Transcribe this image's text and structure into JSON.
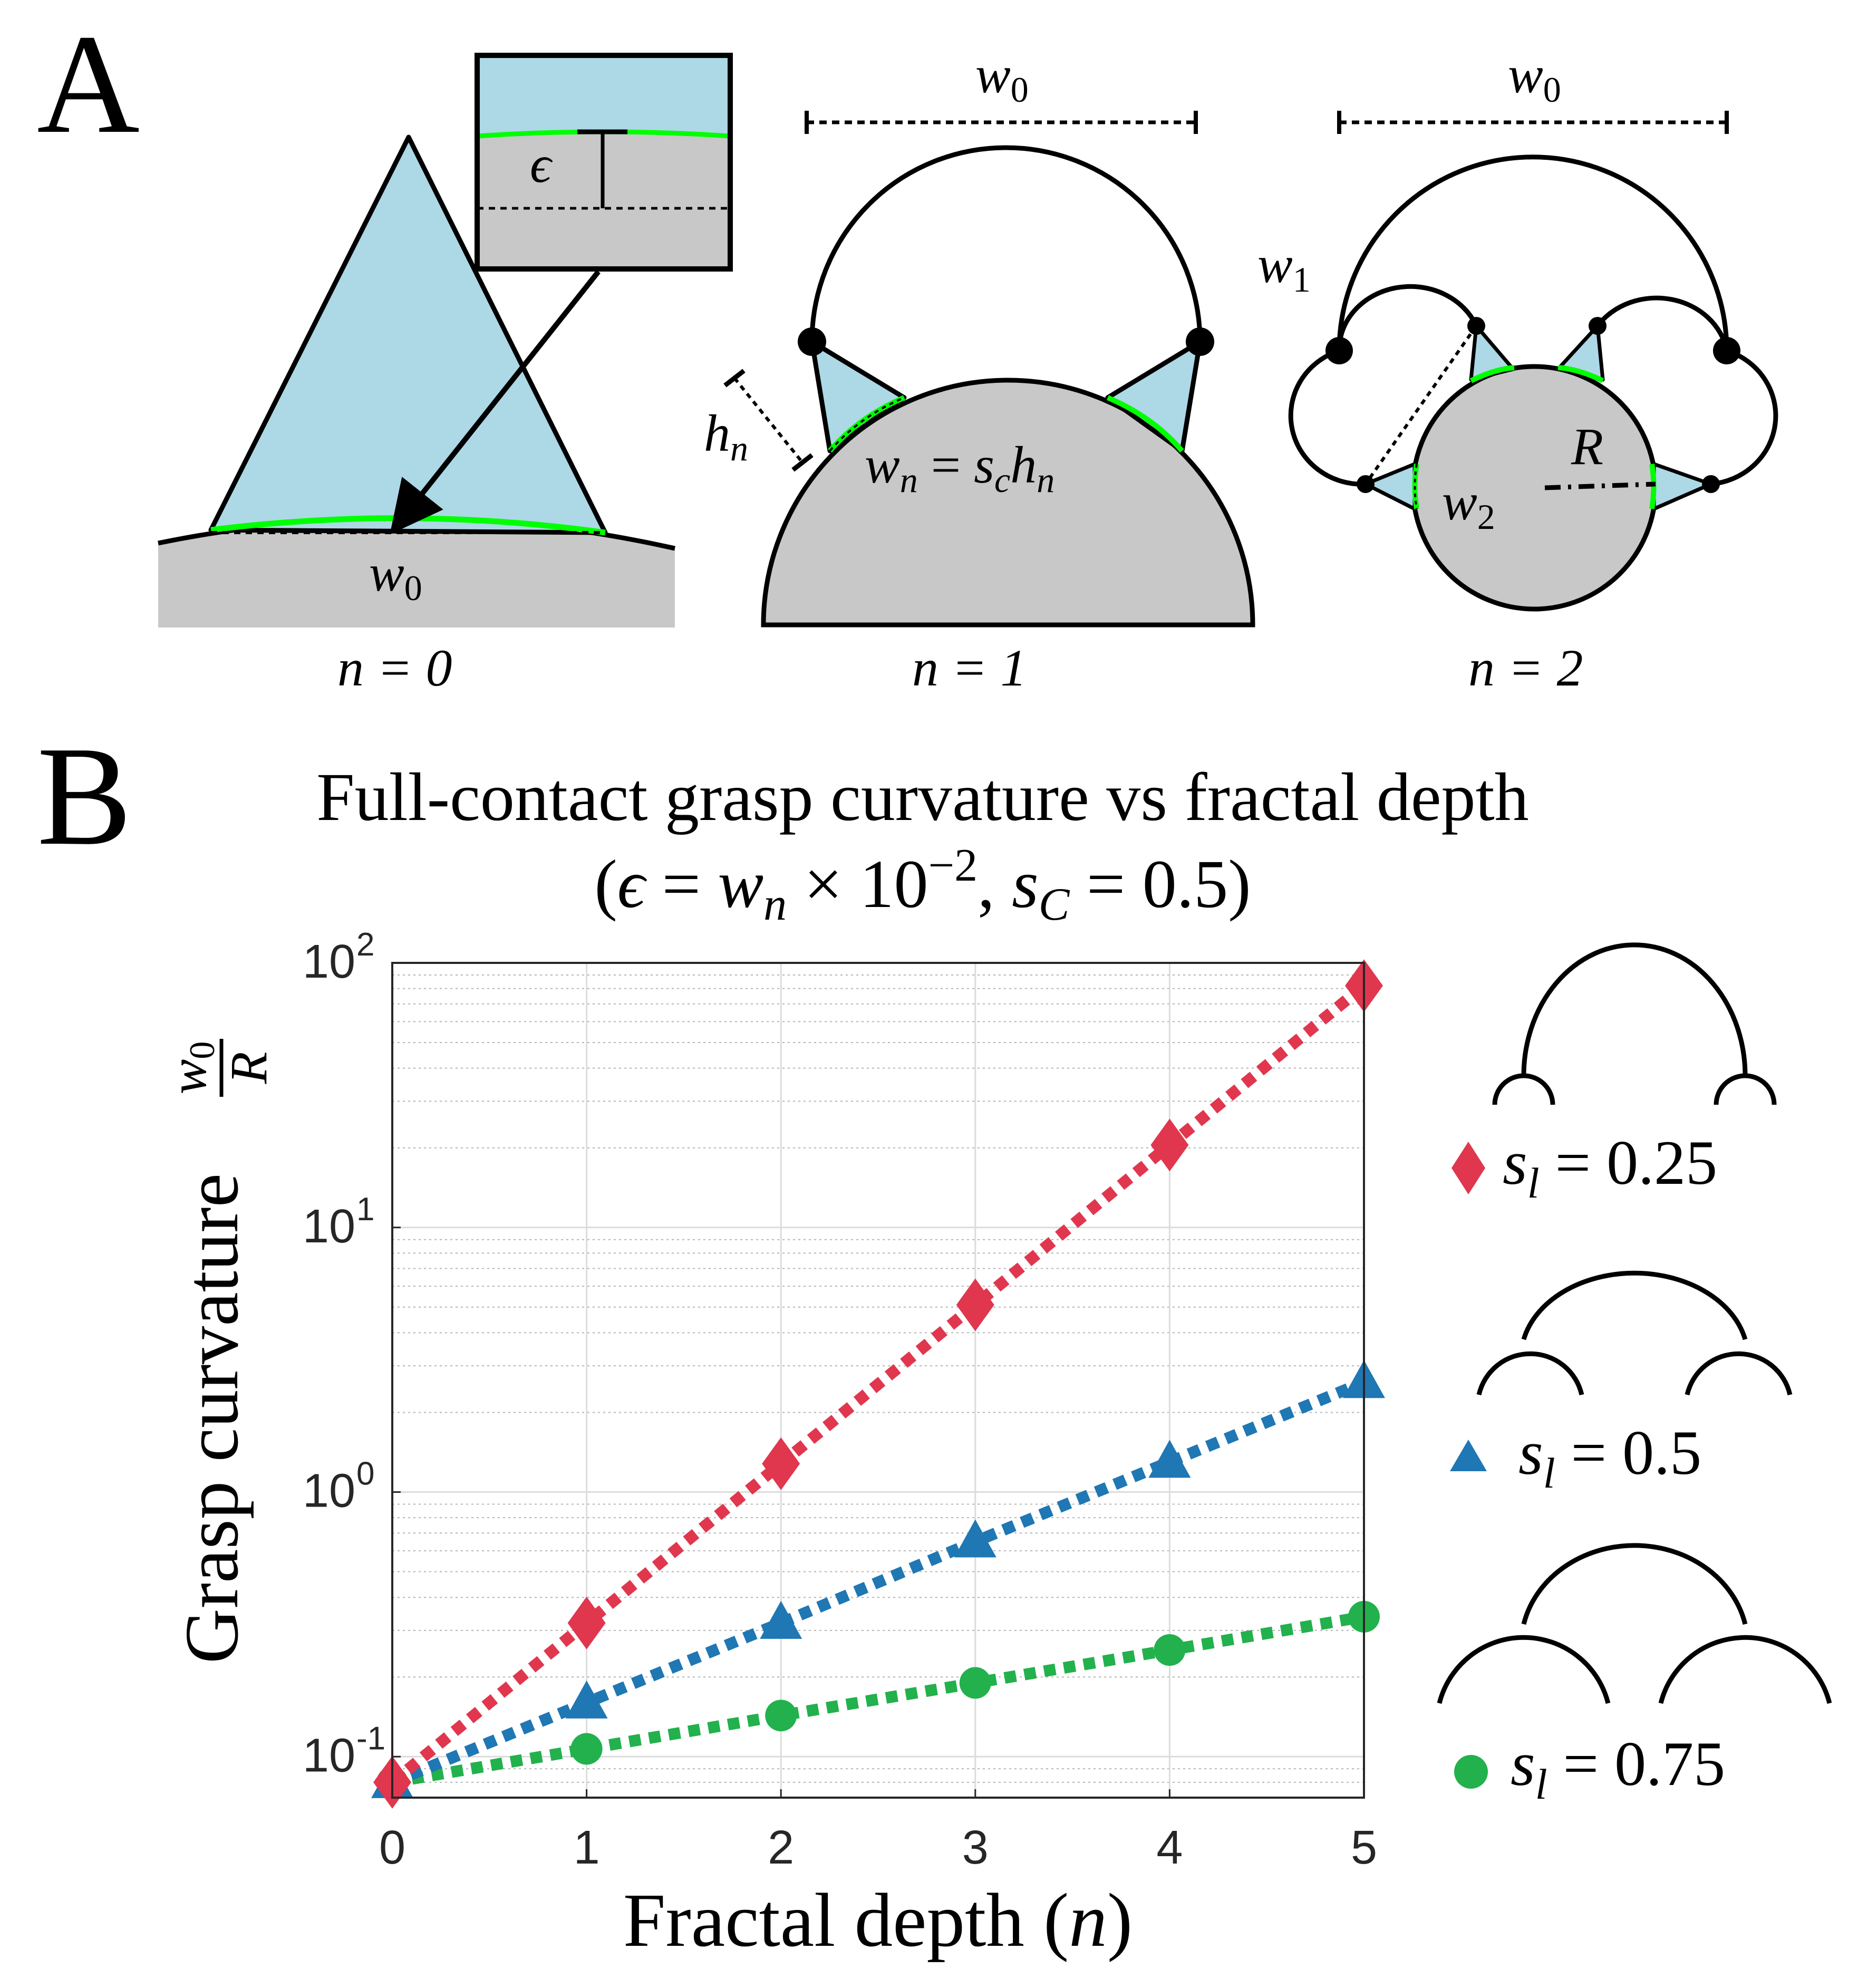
{
  "panel_a": {
    "label": "A",
    "n0": {
      "caption": "n = 0",
      "width_label": "w",
      "width_sub": "0",
      "inset_label": "ϵ"
    },
    "n1": {
      "caption": "n = 1",
      "width_label": "w",
      "width_sub": "0",
      "h_label": "h",
      "h_sub": "n",
      "equation": {
        "w": "w",
        "w_sub": "n",
        "eq": " = ",
        "s": "s",
        "s_sub": "c",
        "h": "h",
        "h_sub": "n"
      }
    },
    "n2": {
      "caption": "n = 2",
      "width_label": "w",
      "width_sub": "0",
      "w1_label": "w",
      "w1_sub": "1",
      "w2_label": "w",
      "w2_sub": "2",
      "r_label": "R"
    },
    "colors": {
      "finger": "#add8e6",
      "object": "#c8c8c8",
      "contact": "#00ff00",
      "stroke": "#000000"
    }
  },
  "panel_b": {
    "label": "B",
    "title_line1": "Full-contact grasp curvature vs fractal depth",
    "title_line2": {
      "open": "(",
      "eps": "ϵ",
      "eq1": " = ",
      "w": "w",
      "w_sub": "n",
      "times": " × 10",
      "exp": "−2",
      "comma": ", ",
      "s": "s",
      "s_sub": "C",
      "eq2": " = 0.5)"
    },
    "ylabel": "Grasp curvature",
    "ylabel_frac_num": "w",
    "ylabel_frac_num_sub": "0",
    "ylabel_frac_den": "R",
    "xlabel": "Fractal depth (",
    "xlabel_var": "n",
    "xlabel_close": ")",
    "yticks": [
      {
        "base": "10",
        "exp": "-1",
        "value": 0.1
      },
      {
        "base": "10",
        "exp": "0",
        "value": 1
      },
      {
        "base": "10",
        "exp": "1",
        "value": 10
      },
      {
        "base": "10",
        "exp": "2",
        "value": 100
      }
    ],
    "xticks": [
      "0",
      "1",
      "2",
      "3",
      "4",
      "5"
    ],
    "legend": [
      {
        "marker": "diamond",
        "label_s": "s",
        "label_sub": "l",
        "label_rest": " = 0.25"
      },
      {
        "marker": "triangle",
        "label_s": "s",
        "label_sub": "l",
        "label_rest": " = 0.5"
      },
      {
        "marker": "circle",
        "label_s": "s",
        "label_sub": "l",
        "label_rest": " = 0.75"
      }
    ]
  },
  "chart_data": {
    "type": "line",
    "title": "Full-contact grasp curvature vs fractal depth (ϵ = w_n × 10^−2, s_C = 0.5)",
    "xlabel": "Fractal depth (n)",
    "ylabel": "Grasp curvature w0/R",
    "x": [
      0,
      1,
      2,
      3,
      4,
      5
    ],
    "xlim": [
      0,
      5
    ],
    "ylim": [
      0.07,
      100
    ],
    "yscale": "log",
    "grid": true,
    "legend_position": "right, outside plot",
    "series": [
      {
        "name": "s_l = 0.25",
        "marker": "diamond",
        "color": "#e0374e",
        "values": [
          0.08,
          0.32,
          1.28,
          5.1,
          20.5,
          82
        ]
      },
      {
        "name": "s_l = 0.5",
        "marker": "triangle",
        "color": "#1f77b4",
        "values": [
          0.08,
          0.16,
          0.32,
          0.65,
          1.3,
          2.6
        ]
      },
      {
        "name": "s_l = 0.75",
        "marker": "circle",
        "color": "#22b14c",
        "values": [
          0.08,
          0.107,
          0.143,
          0.19,
          0.253,
          0.338
        ]
      }
    ]
  }
}
